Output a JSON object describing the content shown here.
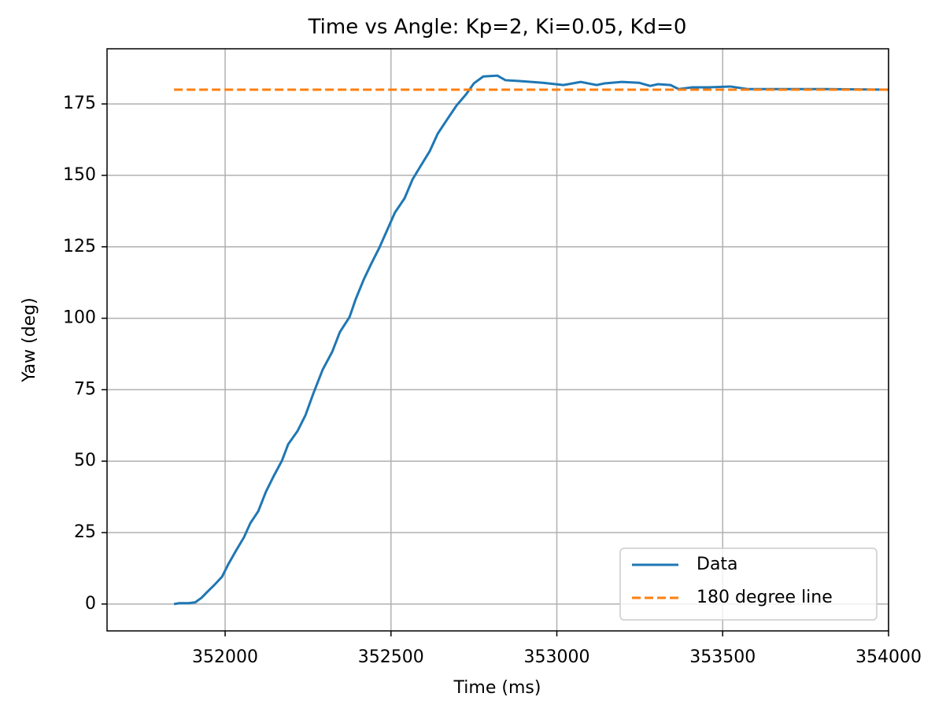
{
  "chart_data": {
    "type": "line",
    "title": "Time vs Angle: Kp=2, Ki=0.05, Kd=0",
    "x_label": "Time (ms)",
    "y_label": "Yaw (deg)",
    "xlim": [
      351644,
      354000
    ],
    "ylim": [
      -9.4,
      194.3
    ],
    "xticks": [
      352000,
      352500,
      353000,
      353500,
      354000
    ],
    "yticks": [
      0,
      25,
      50,
      75,
      100,
      125,
      150,
      175
    ],
    "grid": true,
    "legend": "lower right",
    "series": [
      {
        "name": "Data",
        "color": "#1f77b4",
        "linestyle": "solid",
        "x": [
          351846,
          351862,
          351891,
          351910,
          351929,
          351945,
          351967,
          351991,
          352009,
          352033,
          352057,
          352076,
          352100,
          352123,
          352147,
          352171,
          352190,
          352218,
          352242,
          352266,
          352294,
          352323,
          352346,
          352375,
          352394,
          352418,
          352441,
          352465,
          352489,
          352512,
          352541,
          352565,
          352588,
          352617,
          352641,
          352669,
          352698,
          352726,
          352750,
          352778,
          352821,
          352845,
          352887,
          352958,
          353020,
          353072,
          353120,
          353144,
          353196,
          353248,
          353281,
          353305,
          353343,
          353367,
          353409,
          353457,
          353523,
          353575,
          353813,
          354000
        ],
        "values": [
          0,
          0.3,
          0.3,
          0.6,
          2.2,
          4.1,
          6.6,
          9.6,
          13.8,
          18.7,
          23.4,
          28.3,
          32.5,
          39.3,
          44.9,
          50.1,
          55.9,
          60.5,
          66.0,
          73.7,
          82.0,
          88.3,
          95.2,
          100.4,
          106.8,
          113.6,
          119.2,
          124.7,
          131.0,
          137.0,
          142.0,
          148.6,
          153.0,
          158.5,
          164.6,
          169.5,
          174.5,
          178.3,
          182.2,
          184.6,
          184.9,
          183.3,
          183.0,
          182.4,
          181.6,
          182.7,
          181.6,
          182.2,
          182.7,
          182.4,
          181.3,
          181.9,
          181.6,
          180.2,
          180.8,
          180.8,
          181.1,
          180.2,
          180.2,
          180.0
        ]
      },
      {
        "name": "180 degree line",
        "color": "#ff7f0e",
        "linestyle": "dashed",
        "x": [
          351846,
          354000
        ],
        "values": [
          180,
          180
        ]
      }
    ]
  }
}
